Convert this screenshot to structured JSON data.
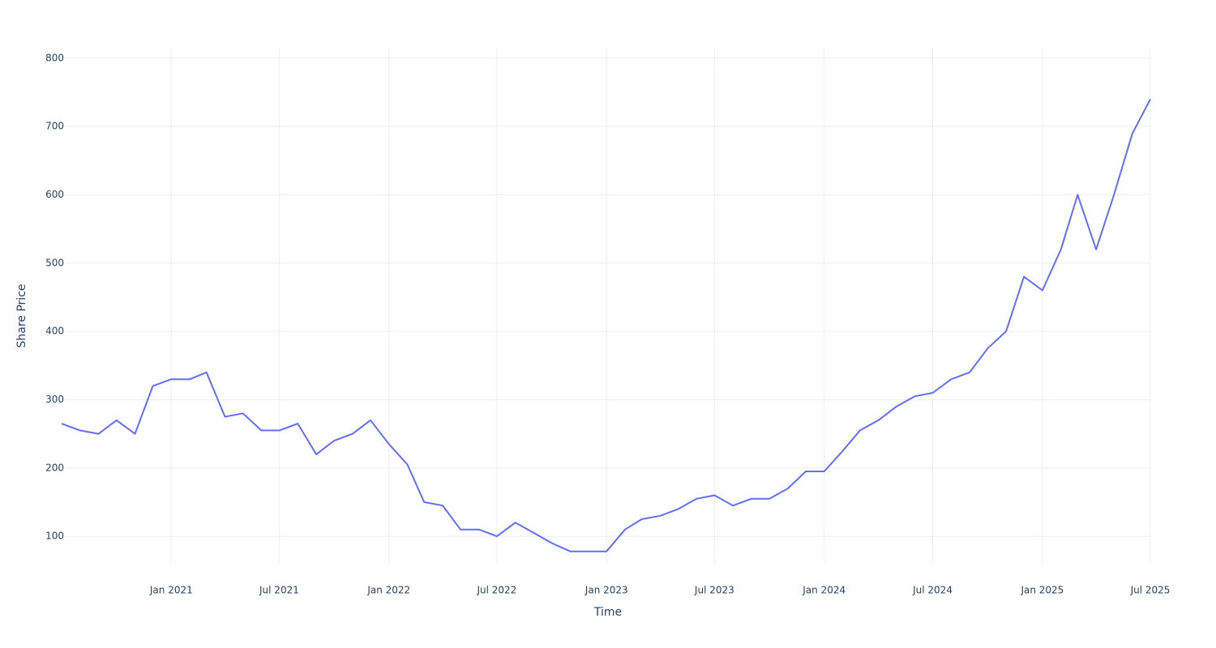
{
  "chart_data": {
    "type": "line",
    "xlabel": "Time",
    "ylabel": "Share Price",
    "x": [
      "2020-07",
      "2020-08",
      "2020-09",
      "2020-10",
      "2020-11",
      "2020-12",
      "2021-01",
      "2021-02",
      "2021-03",
      "2021-04",
      "2021-05",
      "2021-06",
      "2021-07",
      "2021-08",
      "2021-09",
      "2021-10",
      "2021-11",
      "2021-12",
      "2022-01",
      "2022-02",
      "2022-03",
      "2022-04",
      "2022-05",
      "2022-06",
      "2022-07",
      "2022-08",
      "2022-09",
      "2022-10",
      "2022-11",
      "2022-12",
      "2023-01",
      "2023-02",
      "2023-03",
      "2023-04",
      "2023-05",
      "2023-06",
      "2023-07",
      "2023-08",
      "2023-09",
      "2023-10",
      "2023-11",
      "2023-12",
      "2024-01",
      "2024-02",
      "2024-03",
      "2024-04",
      "2024-05",
      "2024-06",
      "2024-07",
      "2024-08",
      "2024-09",
      "2024-10",
      "2024-11",
      "2024-12",
      "2025-01",
      "2025-02",
      "2025-03",
      "2025-04",
      "2025-05",
      "2025-06",
      "2025-07"
    ],
    "series": [
      {
        "color": "#636efa",
        "values": [
          265,
          255,
          250,
          270,
          250,
          320,
          330,
          330,
          340,
          275,
          280,
          255,
          255,
          265,
          220,
          240,
          250,
          270,
          235,
          205,
          150,
          145,
          110,
          110,
          100,
          120,
          105,
          90,
          78,
          78,
          78,
          110,
          125,
          130,
          140,
          155,
          160,
          145,
          155,
          155,
          170,
          195,
          195,
          225,
          255,
          270,
          290,
          305,
          310,
          330,
          340,
          375,
          400,
          480,
          460,
          520,
          600,
          520,
          600,
          690,
          740
        ]
      }
    ],
    "xlim": [
      "2020-07",
      "2025-07"
    ],
    "xticks": [
      {
        "value": "2021-01",
        "label": "Jan 2021"
      },
      {
        "value": "2021-07",
        "label": "Jul 2021"
      },
      {
        "value": "2022-01",
        "label": "Jan 2022"
      },
      {
        "value": "2022-07",
        "label": "Jul 2022"
      },
      {
        "value": "2023-01",
        "label": "Jan 2023"
      },
      {
        "value": "2023-07",
        "label": "Jul 2023"
      },
      {
        "value": "2024-01",
        "label": "Jan 2024"
      },
      {
        "value": "2024-07",
        "label": "Jul 2024"
      },
      {
        "value": "2025-01",
        "label": "Jan 2025"
      },
      {
        "value": "2025-07",
        "label": "Jul 2025"
      }
    ],
    "ylim": [
      61,
      814
    ],
    "yticks": [
      100,
      200,
      300,
      400,
      500,
      600,
      700,
      800
    ],
    "grid": true
  }
}
